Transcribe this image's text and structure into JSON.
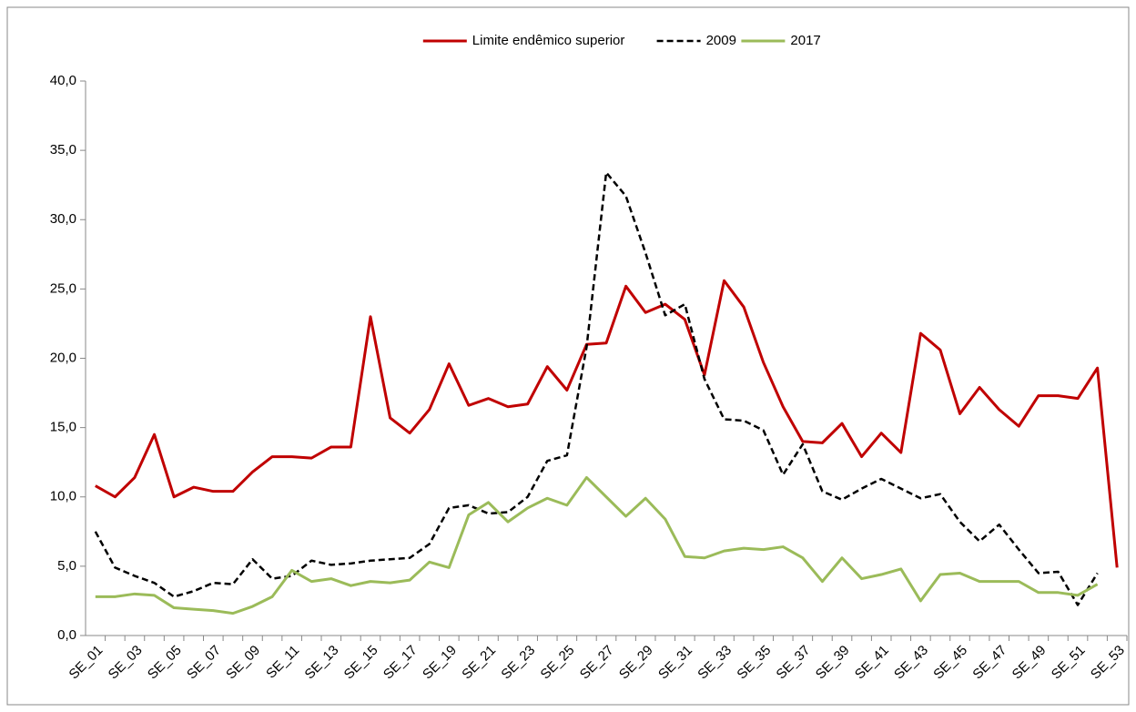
{
  "chart_data": {
    "type": "line",
    "categories": [
      "SE_01",
      null,
      "SE_03",
      null,
      "SE_05",
      null,
      "SE_07",
      null,
      "SE_09",
      null,
      "SE_11",
      null,
      "SE_13",
      null,
      "SE_15",
      null,
      "SE_17",
      null,
      "SE_19",
      null,
      "SE_21",
      null,
      "SE_23",
      null,
      "SE_25",
      null,
      "SE_27",
      null,
      "SE_29",
      null,
      "SE_31",
      null,
      "SE_33",
      null,
      "SE_35",
      null,
      "SE_37",
      null,
      "SE_39",
      null,
      "SE_41",
      null,
      "SE_43",
      null,
      "SE_45",
      null,
      "SE_47",
      null,
      "SE_49",
      null,
      "SE_51",
      null,
      "SE_53"
    ],
    "series": [
      {
        "name": "Limite endêmico superior",
        "color": "#c00000",
        "dashed": false,
        "values": [
          10.8,
          10.0,
          11.4,
          14.5,
          10.0,
          10.7,
          10.4,
          10.4,
          11.8,
          12.9,
          12.9,
          12.8,
          13.6,
          13.6,
          23.0,
          15.7,
          14.6,
          16.3,
          19.6,
          16.6,
          17.1,
          16.5,
          16.7,
          19.4,
          17.7,
          21.0,
          21.1,
          25.2,
          23.3,
          23.9,
          22.8,
          18.8,
          25.6,
          23.7,
          19.7,
          16.5,
          14.0,
          13.9,
          15.3,
          12.9,
          14.6,
          13.2,
          21.8,
          20.6,
          16.0,
          17.9,
          16.3,
          15.1,
          17.3,
          17.3,
          17.1,
          19.3,
          4.9
        ]
      },
      {
        "name": "2009",
        "color": "#000000",
        "dashed": true,
        "values": [
          7.5,
          4.9,
          4.3,
          3.8,
          2.8,
          3.2,
          3.8,
          3.7,
          5.5,
          4.1,
          4.3,
          5.4,
          5.1,
          5.2,
          5.4,
          5.5,
          5.6,
          6.6,
          9.2,
          9.4,
          8.8,
          8.9,
          10.0,
          12.6,
          13.0,
          20.8,
          33.4,
          31.7,
          27.6,
          23.1,
          23.9,
          18.5,
          15.6,
          15.5,
          14.8,
          11.6,
          13.8,
          10.4,
          9.8,
          10.6,
          11.3,
          10.6,
          9.9,
          10.2,
          8.2,
          6.8,
          8.0,
          6.2,
          4.5,
          4.6,
          2.2,
          4.5,
          null
        ]
      },
      {
        "name": "2017",
        "color": "#9bbb59",
        "dashed": false,
        "values": [
          2.8,
          2.8,
          3.0,
          2.9,
          2.0,
          1.9,
          1.8,
          1.6,
          2.1,
          2.8,
          4.7,
          3.9,
          4.1,
          3.6,
          3.9,
          3.8,
          4.0,
          5.3,
          4.9,
          8.7,
          9.6,
          8.2,
          9.2,
          9.9,
          9.4,
          11.4,
          10.0,
          8.6,
          9.9,
          8.4,
          5.7,
          5.6,
          6.1,
          6.3,
          6.2,
          6.4,
          5.6,
          3.9,
          5.6,
          4.1,
          4.4,
          4.8,
          2.5,
          4.4,
          4.5,
          3.9,
          3.9,
          3.9,
          3.1,
          3.1,
          2.9,
          3.7,
          null
        ]
      }
    ],
    "ylim": [
      0,
      40
    ],
    "yticks": [
      {
        "value": 0,
        "label": "0,0"
      },
      {
        "value": 5,
        "label": "5,0"
      },
      {
        "value": 10,
        "label": "10,0"
      },
      {
        "value": 15,
        "label": "15,0"
      },
      {
        "value": 20,
        "label": "20,0"
      },
      {
        "value": 25,
        "label": "25,0"
      },
      {
        "value": 30,
        "label": "30,0"
      },
      {
        "value": 35,
        "label": "35,0"
      },
      {
        "value": 40,
        "label": "40,0"
      }
    ],
    "grid": false,
    "legend": "top"
  }
}
